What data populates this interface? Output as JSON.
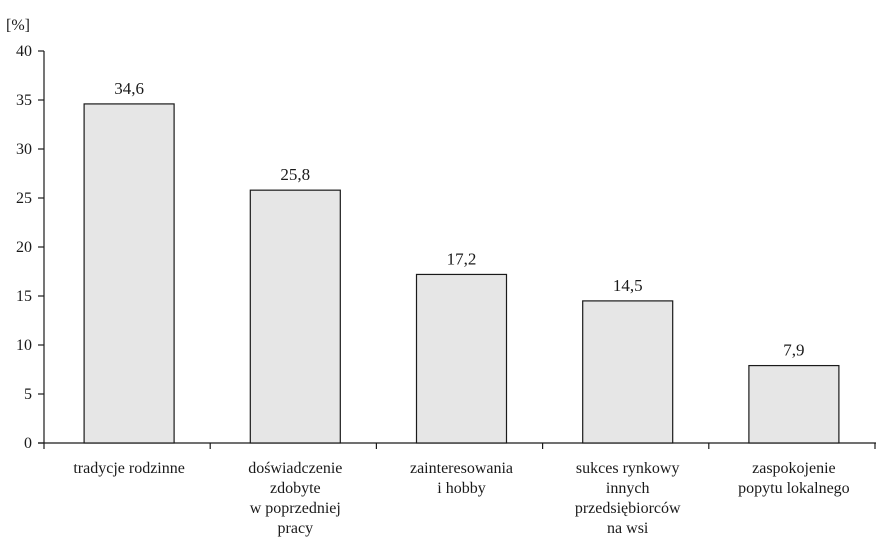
{
  "chart_data": {
    "type": "bar",
    "y_unit_label": "[%]",
    "categories": [
      [
        "tradycje rodzinne"
      ],
      [
        "doświadczenie",
        "zdobyte",
        "w poprzedniej",
        "pracy"
      ],
      [
        "zainteresowania",
        "i hobby"
      ],
      [
        "sukces rynkowy",
        "innych",
        "przedsiębiorców",
        "na wsi"
      ],
      [
        "zaspokojenie",
        "popytu lokalnego"
      ]
    ],
    "values": [
      34.6,
      25.8,
      17.2,
      14.5,
      7.9
    ],
    "value_labels": [
      "34,6",
      "25,8",
      "17,2",
      "14,5",
      "7,9"
    ],
    "ylim": [
      0,
      40
    ],
    "yticks": [
      0,
      5,
      10,
      15,
      20,
      25,
      30,
      35,
      40
    ],
    "grid": false,
    "legend": "none",
    "colors": {
      "bar_fill": "#e6e6e6",
      "bar_stroke": "#1a1a1a",
      "axis": "#1a1a1a"
    }
  }
}
